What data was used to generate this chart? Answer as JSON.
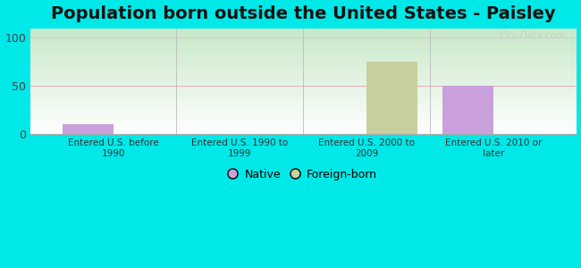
{
  "title": "Population born outside the United States - Paisley",
  "categories": [
    "Entered U.S. before\n1990",
    "Entered U.S. 1990 to\n1999",
    "Entered U.S. 2000 to\n2009",
    "Entered U.S. 2010 or\nlater"
  ],
  "native_values": [
    10,
    0,
    0,
    50
  ],
  "foreign_values": [
    0,
    0,
    75,
    0
  ],
  "native_color": "#c9a0dc",
  "foreign_color": "#c8cf9e",
  "background_color": "#00e8e8",
  "plot_bg_color_top": "#c8e8c8",
  "plot_bg_color_bottom": "#ffffff",
  "ylim": [
    0,
    110
  ],
  "yticks": [
    0,
    50,
    100
  ],
  "grid_color_50": "#e8b0b8",
  "grid_color_100": "#cccccc",
  "title_fontsize": 14,
  "legend_native": "Native",
  "legend_foreign": "Foreign-born",
  "bar_width": 0.4,
  "watermark": "City-Data.com"
}
